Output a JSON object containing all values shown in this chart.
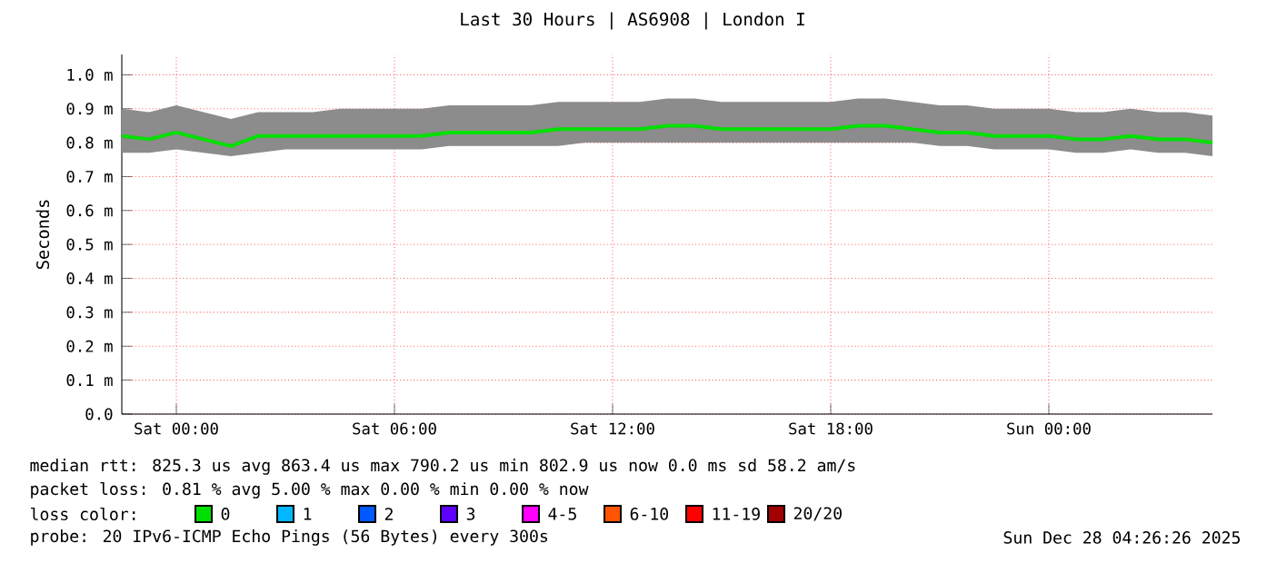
{
  "chart_data": {
    "type": "line",
    "title": "Last 30 Hours | AS6908 | London I",
    "ylabel": "Seconds",
    "x": [
      "2025-12-26T22:30",
      "2025-12-26T23:15",
      "2025-12-27T00:00",
      "2025-12-27T00:45",
      "2025-12-27T01:30",
      "2025-12-27T02:15",
      "2025-12-27T03:00",
      "2025-12-27T03:45",
      "2025-12-27T04:30",
      "2025-12-27T05:15",
      "2025-12-27T06:00",
      "2025-12-27T06:45",
      "2025-12-27T07:30",
      "2025-12-27T08:15",
      "2025-12-27T09:00",
      "2025-12-27T09:45",
      "2025-12-27T10:30",
      "2025-12-27T11:15",
      "2025-12-27T12:00",
      "2025-12-27T12:45",
      "2025-12-27T13:30",
      "2025-12-27T14:15",
      "2025-12-27T15:00",
      "2025-12-27T15:45",
      "2025-12-27T16:30",
      "2025-12-27T17:15",
      "2025-12-27T18:00",
      "2025-12-27T18:45",
      "2025-12-27T19:30",
      "2025-12-27T20:15",
      "2025-12-27T21:00",
      "2025-12-27T21:45",
      "2025-12-27T22:30",
      "2025-12-27T23:15",
      "2025-12-28T00:00",
      "2025-12-28T00:45",
      "2025-12-28T01:30",
      "2025-12-28T02:15",
      "2025-12-28T03:00",
      "2025-12-28T03:45",
      "2025-12-28T04:30"
    ],
    "xlim": [
      "2025-12-26T22:30",
      "2025-12-28T04:30"
    ],
    "xticks": [
      {
        "value": "2025-12-27T00:00",
        "label": "Sat 00:00"
      },
      {
        "value": "2025-12-27T06:00",
        "label": "Sat 06:00"
      },
      {
        "value": "2025-12-27T12:00",
        "label": "Sat 12:00"
      },
      {
        "value": "2025-12-27T18:00",
        "label": "Sat 18:00"
      },
      {
        "value": "2025-12-28T00:00",
        "label": "Sun 00:00"
      }
    ],
    "ylim": [
      0,
      1.06
    ],
    "yticks": [
      {
        "value": 0,
        "label": "0.0"
      },
      {
        "value": 0.1,
        "label": "0.1 m"
      },
      {
        "value": 0.2,
        "label": "0.2 m"
      },
      {
        "value": 0.3,
        "label": "0.3 m"
      },
      {
        "value": 0.4,
        "label": "0.4 m"
      },
      {
        "value": 0.5,
        "label": "0.5 m"
      },
      {
        "value": 0.6,
        "label": "0.6 m"
      },
      {
        "value": 0.7,
        "label": "0.7 m"
      },
      {
        "value": 0.8,
        "label": "0.8 m"
      },
      {
        "value": 0.9,
        "label": "0.9 m"
      },
      {
        "value": 1.0,
        "label": "1.0 m"
      }
    ],
    "grid": true,
    "legend": "bottom",
    "series": [
      {
        "name": "0",
        "color": "#00e000",
        "values": [
          0.82,
          0.81,
          0.83,
          0.81,
          0.79,
          0.82,
          0.82,
          0.82,
          0.82,
          0.82,
          0.82,
          0.82,
          0.83,
          0.83,
          0.83,
          0.83,
          0.84,
          0.84,
          0.84,
          0.84,
          0.85,
          0.85,
          0.84,
          0.84,
          0.84,
          0.84,
          0.84,
          0.85,
          0.85,
          0.84,
          0.83,
          0.83,
          0.82,
          0.82,
          0.82,
          0.81,
          0.81,
          0.82,
          0.81,
          0.81,
          0.8
        ],
        "lower": [
          0.77,
          0.77,
          0.78,
          0.77,
          0.76,
          0.77,
          0.78,
          0.78,
          0.78,
          0.78,
          0.78,
          0.78,
          0.79,
          0.79,
          0.79,
          0.79,
          0.79,
          0.8,
          0.8,
          0.8,
          0.8,
          0.8,
          0.8,
          0.8,
          0.8,
          0.8,
          0.8,
          0.8,
          0.8,
          0.8,
          0.79,
          0.79,
          0.78,
          0.78,
          0.78,
          0.77,
          0.77,
          0.78,
          0.77,
          0.77,
          0.76
        ],
        "upper": [
          0.9,
          0.89,
          0.91,
          0.89,
          0.87,
          0.89,
          0.89,
          0.89,
          0.9,
          0.9,
          0.9,
          0.9,
          0.91,
          0.91,
          0.91,
          0.91,
          0.92,
          0.92,
          0.92,
          0.92,
          0.93,
          0.93,
          0.92,
          0.92,
          0.92,
          0.92,
          0.92,
          0.93,
          0.93,
          0.92,
          0.91,
          0.91,
          0.9,
          0.9,
          0.9,
          0.89,
          0.89,
          0.9,
          0.89,
          0.89,
          0.88
        ]
      },
      {
        "name": "1",
        "color": "#00b8ff",
        "values": [
          null,
          null,
          null,
          null,
          null,
          null,
          null,
          null,
          null,
          null,
          null,
          null,
          null,
          null,
          null,
          null,
          null,
          null,
          null,
          null,
          null,
          null,
          null,
          null,
          null,
          null,
          null,
          null,
          null,
          null,
          null,
          null,
          null,
          null,
          null,
          null,
          null,
          null,
          null,
          null,
          null
        ]
      },
      {
        "name": "2",
        "color": "#0059ff",
        "values": [
          null,
          null,
          null,
          null,
          null,
          null,
          null,
          null,
          null,
          null,
          null,
          null,
          null,
          null,
          null,
          null,
          null,
          null,
          null,
          null,
          null,
          null,
          null,
          null,
          null,
          null,
          null,
          null,
          null,
          null,
          null,
          null,
          null,
          null,
          null,
          null,
          null,
          null,
          null,
          null,
          null
        ]
      },
      {
        "name": "3",
        "color": "#5e00ff",
        "values": [
          null,
          null,
          null,
          null,
          null,
          null,
          null,
          null,
          null,
          null,
          null,
          null,
          null,
          null,
          null,
          null,
          null,
          null,
          null,
          null,
          null,
          null,
          null,
          null,
          null,
          null,
          null,
          null,
          null,
          null,
          null,
          null,
          null,
          null,
          null,
          null,
          null,
          null,
          null,
          null,
          null
        ]
      },
      {
        "name": "4-5",
        "color": "#ff00ff",
        "values": [
          null,
          null,
          null,
          null,
          null,
          null,
          null,
          null,
          null,
          null,
          null,
          null,
          null,
          null,
          null,
          null,
          null,
          null,
          null,
          null,
          null,
          null,
          null,
          null,
          null,
          null,
          null,
          null,
          null,
          null,
          null,
          null,
          null,
          null,
          null,
          null,
          null,
          null,
          null,
          null,
          null
        ]
      },
      {
        "name": "6-10",
        "color": "#ff5500",
        "values": [
          null,
          null,
          null,
          null,
          null,
          null,
          null,
          null,
          null,
          null,
          null,
          null,
          null,
          null,
          null,
          null,
          null,
          null,
          null,
          null,
          null,
          null,
          null,
          null,
          null,
          null,
          null,
          null,
          null,
          null,
          null,
          null,
          null,
          null,
          null,
          null,
          null,
          null,
          null,
          null,
          null
        ]
      },
      {
        "name": "11-19",
        "color": "#ff0000",
        "values": [
          null,
          null,
          null,
          null,
          null,
          null,
          null,
          null,
          null,
          null,
          null,
          null,
          null,
          null,
          null,
          null,
          null,
          null,
          null,
          null,
          null,
          null,
          null,
          null,
          null,
          null,
          null,
          null,
          null,
          null,
          null,
          null,
          null,
          null,
          null,
          null,
          null,
          null,
          null,
          null,
          null
        ]
      },
      {
        "name": "20/20",
        "color": "#a10000",
        "values": [
          null,
          null,
          null,
          null,
          null,
          null,
          null,
          null,
          null,
          null,
          null,
          null,
          null,
          null,
          null,
          null,
          null,
          null,
          null,
          null,
          null,
          null,
          null,
          null,
          null,
          null,
          null,
          null,
          null,
          null,
          null,
          null,
          null,
          null,
          null,
          null,
          null,
          null,
          null,
          null,
          null
        ]
      }
    ],
    "annotations": [
      "median rtt:  825.3 us avg  863.4 us max  790.2 us min  802.9 us now  0.0 ms sd  58.2  am/s",
      "packet loss: 0.81 % avg  5.00 % max  0.00 % min  0.00 % now",
      "loss color:",
      "probe:  20 IPv6-ICMP Echo Pings (56 Bytes) every 300s",
      "Sun Dec 28 04:26:26 2025"
    ]
  }
}
